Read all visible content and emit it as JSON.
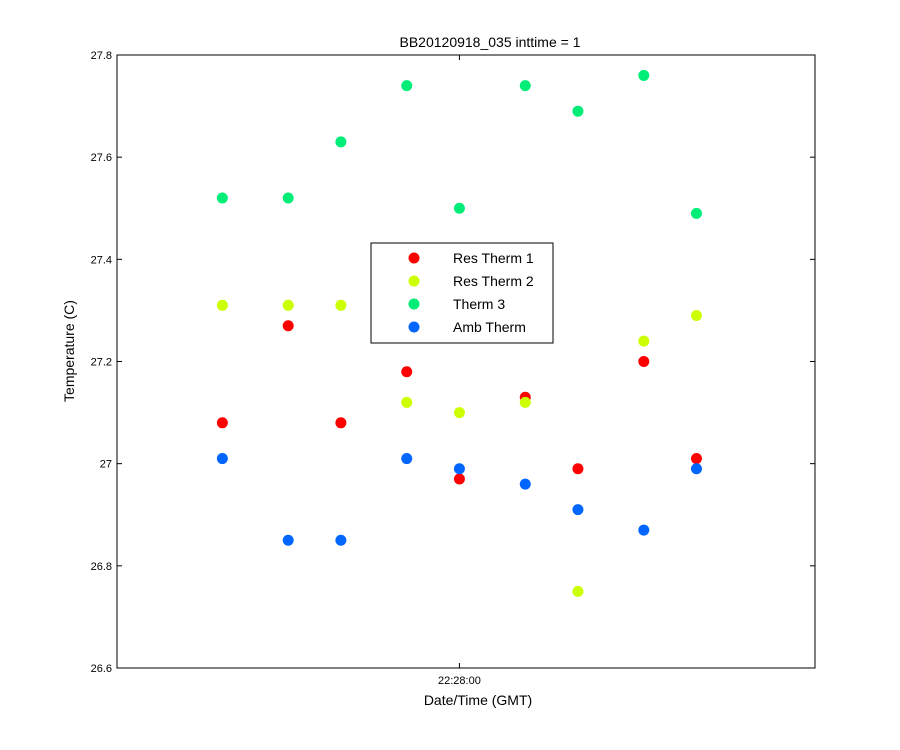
{
  "chart_data": {
    "type": "scatter",
    "title": "BB20120918_035 inttime = 1",
    "xlabel": "Date/Time (GMT)",
    "ylabel": "Temperature (C)",
    "ylim": [
      26.6,
      27.8
    ],
    "y_ticks": [
      26.6,
      26.8,
      27,
      27.2,
      27.4,
      27.6,
      27.8
    ],
    "y_tick_labels": [
      "26.6",
      "26.8",
      "27",
      "27.2",
      "27.4",
      "27.6",
      "27.8"
    ],
    "xlim": [
      "22:27:34",
      "22:28:27"
    ],
    "x_ticks": [
      "22:28:00"
    ],
    "x_tick_labels": [
      "22:28:00"
    ],
    "grid": false,
    "legend_position": "center",
    "x": [
      "22:27:42",
      "22:27:47",
      "22:27:51",
      "22:27:56",
      "22:28:00",
      "22:28:05",
      "22:28:09",
      "22:28:14",
      "22:28:18"
    ],
    "series": [
      {
        "name": "Res Therm 1",
        "color": "#ff0000",
        "values": [
          27.08,
          27.27,
          27.08,
          27.18,
          26.97,
          27.13,
          26.99,
          27.2,
          27.01
        ]
      },
      {
        "name": "Res Therm 2",
        "color": "#ccff00",
        "values": [
          27.31,
          27.31,
          27.31,
          27.12,
          27.1,
          27.12,
          26.75,
          27.24,
          27.29
        ]
      },
      {
        "name": "Therm 3",
        "color": "#00ee77",
        "values": [
          27.52,
          27.52,
          27.63,
          27.74,
          27.5,
          27.74,
          27.69,
          27.76,
          27.49
        ]
      },
      {
        "name": "Amb Therm",
        "color": "#0066ff",
        "values": [
          27.01,
          26.85,
          26.85,
          27.01,
          26.99,
          26.96,
          26.91,
          26.87,
          26.99
        ]
      }
    ]
  }
}
